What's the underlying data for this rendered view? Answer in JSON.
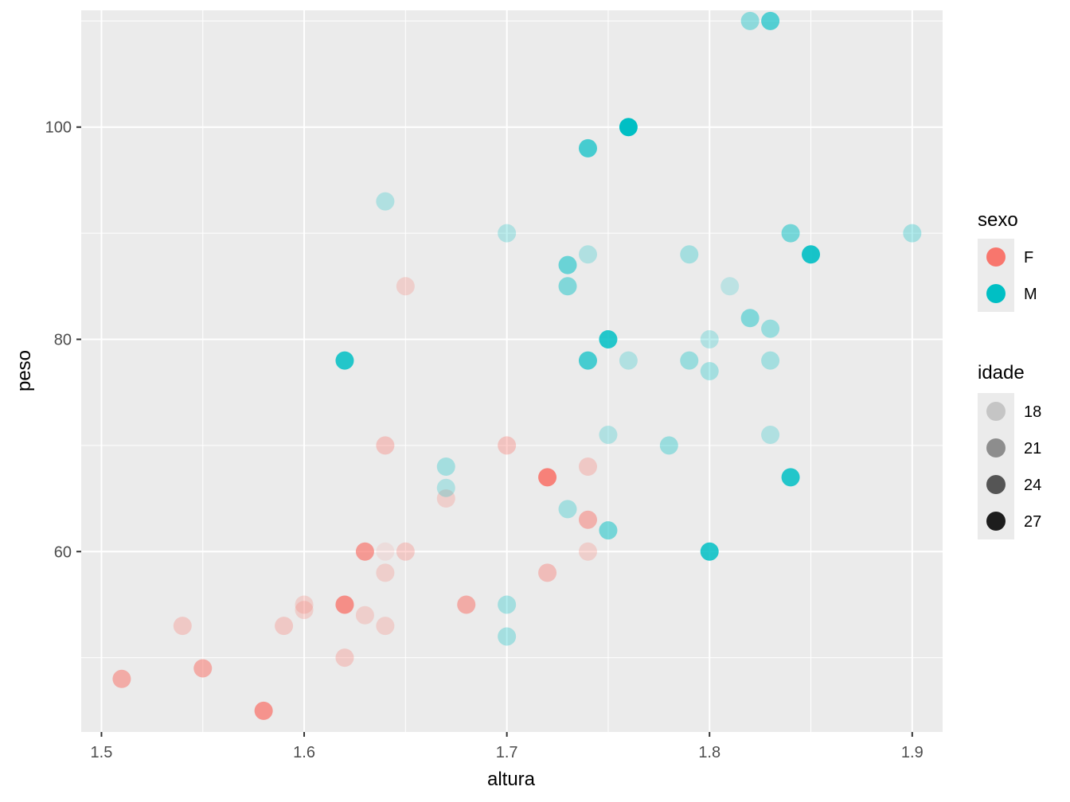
{
  "chart_data": {
    "type": "scatter",
    "xlabel": "altura",
    "ylabel": "peso",
    "xlim": [
      1.49,
      1.915
    ],
    "ylim": [
      43,
      111
    ],
    "x_ticks": [
      1.5,
      1.6,
      1.7,
      1.8,
      1.9
    ],
    "x_tick_labels": [
      "1.5",
      "1.6",
      "1.7",
      "1.8",
      "1.9"
    ],
    "x_minor": [
      1.55,
      1.65,
      1.75,
      1.85
    ],
    "y_ticks": [
      60,
      80,
      100
    ],
    "y_tick_labels": [
      "60",
      "80",
      "100"
    ],
    "y_minor": [
      50,
      70,
      90,
      110
    ],
    "grid": true,
    "background": "#EBEBEB",
    "legend_position": "right",
    "legends": [
      {
        "title": "sexo",
        "entries": [
          {
            "label": "F",
            "color": "#F8766D"
          },
          {
            "label": "M",
            "color": "#00BFC4"
          }
        ]
      },
      {
        "title": "idade",
        "entries": [
          {
            "label": "18",
            "alpha": 0.16
          },
          {
            "label": "21",
            "alpha": 0.4
          },
          {
            "label": "24",
            "alpha": 0.64
          },
          {
            "label": "27",
            "alpha": 0.88
          }
        ]
      }
    ],
    "series": [
      {
        "name": "F",
        "color": "#F8766D",
        "points": [
          {
            "x": 1.51,
            "y": 48,
            "alpha": 0.55
          },
          {
            "x": 1.54,
            "y": 53,
            "alpha": 0.3
          },
          {
            "x": 1.55,
            "y": 49,
            "alpha": 0.55
          },
          {
            "x": 1.58,
            "y": 45,
            "alpha": 0.75
          },
          {
            "x": 1.59,
            "y": 53,
            "alpha": 0.3
          },
          {
            "x": 1.6,
            "y": 55,
            "alpha": 0.25
          },
          {
            "x": 1.6,
            "y": 54.5,
            "alpha": 0.25
          },
          {
            "x": 1.62,
            "y": 55,
            "alpha": 0.7
          },
          {
            "x": 1.62,
            "y": 55,
            "alpha": 0.3
          },
          {
            "x": 1.62,
            "y": 50,
            "alpha": 0.3
          },
          {
            "x": 1.63,
            "y": 60,
            "alpha": 0.7
          },
          {
            "x": 1.63,
            "y": 54,
            "alpha": 0.25
          },
          {
            "x": 1.64,
            "y": 70,
            "alpha": 0.35
          },
          {
            "x": 1.64,
            "y": 60,
            "alpha": 0.12
          },
          {
            "x": 1.64,
            "y": 58,
            "alpha": 0.25
          },
          {
            "x": 1.64,
            "y": 53,
            "alpha": 0.25
          },
          {
            "x": 1.65,
            "y": 85,
            "alpha": 0.25
          },
          {
            "x": 1.65,
            "y": 60,
            "alpha": 0.3
          },
          {
            "x": 1.67,
            "y": 65,
            "alpha": 0.25
          },
          {
            "x": 1.68,
            "y": 55,
            "alpha": 0.55
          },
          {
            "x": 1.7,
            "y": 70,
            "alpha": 0.35
          },
          {
            "x": 1.72,
            "y": 67,
            "alpha": 0.9
          },
          {
            "x": 1.72,
            "y": 58,
            "alpha": 0.4
          },
          {
            "x": 1.74,
            "y": 68,
            "alpha": 0.3
          },
          {
            "x": 1.74,
            "y": 63,
            "alpha": 0.5
          },
          {
            "x": 1.74,
            "y": 60,
            "alpha": 0.25
          }
        ]
      },
      {
        "name": "M",
        "color": "#00BFC4",
        "points": [
          {
            "x": 1.62,
            "y": 78,
            "alpha": 0.85
          },
          {
            "x": 1.64,
            "y": 93,
            "alpha": 0.25
          },
          {
            "x": 1.67,
            "y": 68,
            "alpha": 0.3
          },
          {
            "x": 1.67,
            "y": 66,
            "alpha": 0.25
          },
          {
            "x": 1.7,
            "y": 90,
            "alpha": 0.25
          },
          {
            "x": 1.7,
            "y": 55,
            "alpha": 0.3
          },
          {
            "x": 1.7,
            "y": 52,
            "alpha": 0.3
          },
          {
            "x": 1.73,
            "y": 87,
            "alpha": 0.55
          },
          {
            "x": 1.73,
            "y": 85,
            "alpha": 0.45
          },
          {
            "x": 1.73,
            "y": 64,
            "alpha": 0.3
          },
          {
            "x": 1.74,
            "y": 98,
            "alpha": 0.7
          },
          {
            "x": 1.74,
            "y": 88,
            "alpha": 0.25
          },
          {
            "x": 1.74,
            "y": 78,
            "alpha": 0.7
          },
          {
            "x": 1.75,
            "y": 80,
            "alpha": 0.85
          },
          {
            "x": 1.75,
            "y": 71,
            "alpha": 0.25
          },
          {
            "x": 1.75,
            "y": 62,
            "alpha": 0.5
          },
          {
            "x": 1.76,
            "y": 100,
            "alpha": 1.0
          },
          {
            "x": 1.76,
            "y": 78,
            "alpha": 0.25
          },
          {
            "x": 1.78,
            "y": 70,
            "alpha": 0.35
          },
          {
            "x": 1.79,
            "y": 88,
            "alpha": 0.3
          },
          {
            "x": 1.79,
            "y": 78,
            "alpha": 0.35
          },
          {
            "x": 1.8,
            "y": 80,
            "alpha": 0.25
          },
          {
            "x": 1.8,
            "y": 77,
            "alpha": 0.3
          },
          {
            "x": 1.8,
            "y": 60,
            "alpha": 0.85
          },
          {
            "x": 1.81,
            "y": 85,
            "alpha": 0.2
          },
          {
            "x": 1.82,
            "y": 110,
            "alpha": 0.4
          },
          {
            "x": 1.82,
            "y": 82,
            "alpha": 0.45
          },
          {
            "x": 1.83,
            "y": 110,
            "alpha": 0.65
          },
          {
            "x": 1.83,
            "y": 81,
            "alpha": 0.35
          },
          {
            "x": 1.83,
            "y": 78,
            "alpha": 0.3
          },
          {
            "x": 1.83,
            "y": 71,
            "alpha": 0.25
          },
          {
            "x": 1.84,
            "y": 90,
            "alpha": 0.5
          },
          {
            "x": 1.84,
            "y": 67,
            "alpha": 0.85
          },
          {
            "x": 1.85,
            "y": 88,
            "alpha": 0.9
          },
          {
            "x": 1.9,
            "y": 90,
            "alpha": 0.3
          }
        ]
      }
    ]
  }
}
